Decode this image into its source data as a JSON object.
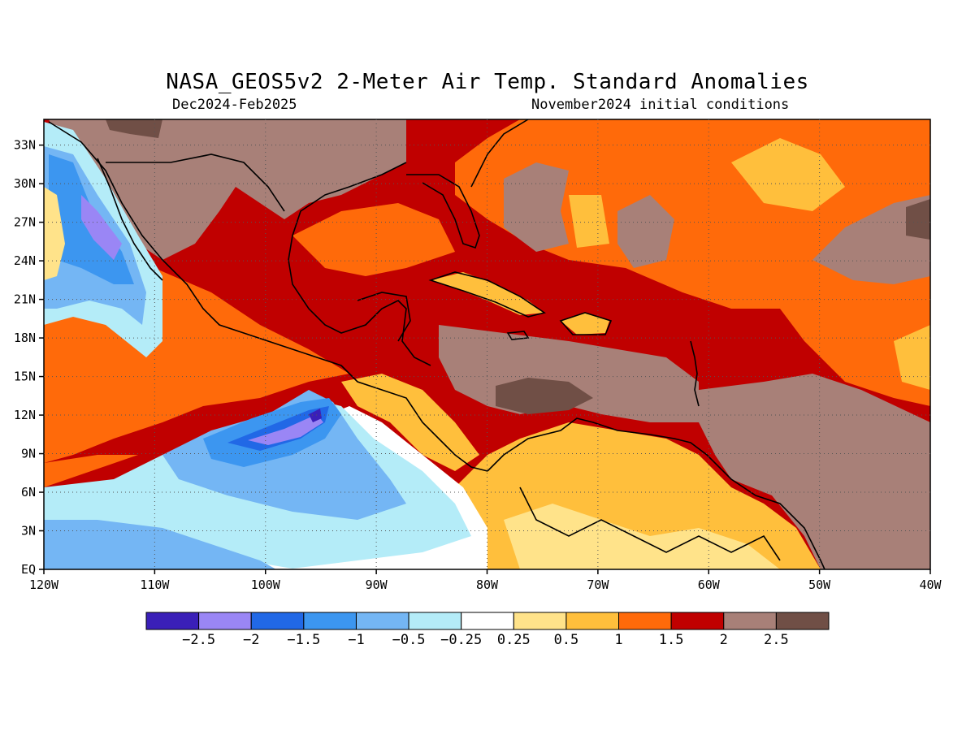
{
  "title": "NASA_GEOS5v2 2-Meter Air Temp. Standard Anomalies",
  "subtitle_left": "Dec2024-Feb2025",
  "subtitle_right": "November2024 initial conditions",
  "map": {
    "lon_min": -120,
    "lon_max": -40,
    "lat_min": 0,
    "lat_max": 35,
    "lon_tick_labels": [
      "120W",
      "110W",
      "100W",
      "90W",
      "80W",
      "70W",
      "60W",
      "50W",
      "40W"
    ],
    "lat_tick_labels": [
      "EQ",
      "3N",
      "6N",
      "9N",
      "12N",
      "15N",
      "18N",
      "21N",
      "24N",
      "27N",
      "30N",
      "33N"
    ],
    "gridlines": "dotted",
    "land_outline_color": "#000000"
  },
  "colorbar": {
    "colors": [
      "#3a1fb8",
      "#9a86f5",
      "#2168e6",
      "#3c96f0",
      "#74b6f4",
      "#b4ecf8",
      "#ffffff",
      "#ffe38a",
      "#ffbf3c",
      "#ff6a0a",
      "#c00000",
      "#a88078",
      "#704f46"
    ],
    "labels": [
      "-2.5",
      "-2",
      "-1.5",
      "-1",
      "-0.5",
      "-0.25",
      "0.25",
      "0.5",
      "1",
      "1.5",
      "2",
      "2.5"
    ]
  }
}
